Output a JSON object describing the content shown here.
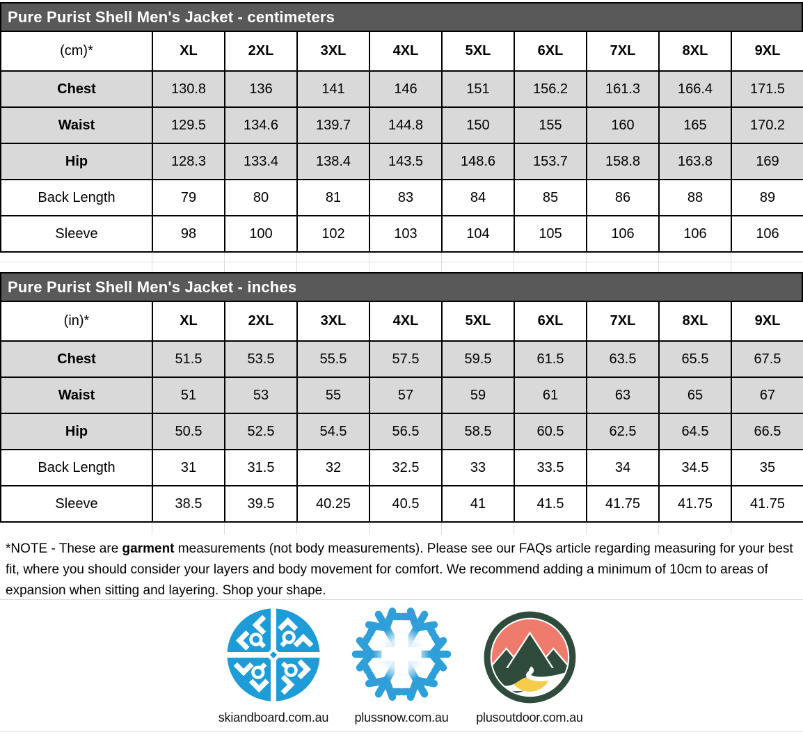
{
  "tables": [
    {
      "title": "Pure Purist Shell Men's Jacket - centimeters",
      "unit_header": "(cm)*",
      "columns": [
        "XL",
        "2XL",
        "3XL",
        "4XL",
        "5XL",
        "6XL",
        "7XL",
        "8XL",
        "9XL"
      ],
      "rows": [
        {
          "label": "Chest",
          "shaded": true,
          "values": [
            "130.8",
            "136",
            "141",
            "146",
            "151",
            "156.2",
            "161.3",
            "166.4",
            "171.5"
          ]
        },
        {
          "label": "Waist",
          "shaded": true,
          "values": [
            "129.5",
            "134.6",
            "139.7",
            "144.8",
            "150",
            "155",
            "160",
            "165",
            "170.2"
          ]
        },
        {
          "label": "Hip",
          "shaded": true,
          "values": [
            "128.3",
            "133.4",
            "138.4",
            "143.5",
            "148.6",
            "153.7",
            "158.8",
            "163.8",
            "169"
          ]
        },
        {
          "label": "Back Length",
          "shaded": false,
          "values": [
            "79",
            "80",
            "81",
            "83",
            "84",
            "85",
            "86",
            "88",
            "89"
          ]
        },
        {
          "label": "Sleeve",
          "shaded": false,
          "values": [
            "98",
            "100",
            "102",
            "103",
            "104",
            "105",
            "106",
            "106",
            "106"
          ]
        }
      ]
    },
    {
      "title": "Pure Purist Shell Men's Jacket - inches",
      "unit_header": "(in)*",
      "columns": [
        "XL",
        "2XL",
        "3XL",
        "4XL",
        "5XL",
        "6XL",
        "7XL",
        "8XL",
        "9XL"
      ],
      "rows": [
        {
          "label": "Chest",
          "shaded": true,
          "values": [
            "51.5",
            "53.5",
            "55.5",
            "57.5",
            "59.5",
            "61.5",
            "63.5",
            "65.5",
            "67.5"
          ]
        },
        {
          "label": "Waist",
          "shaded": true,
          "values": [
            "51",
            "53",
            "55",
            "57",
            "59",
            "61",
            "63",
            "65",
            "67"
          ]
        },
        {
          "label": "Hip",
          "shaded": true,
          "values": [
            "50.5",
            "52.5",
            "54.5",
            "56.5",
            "58.5",
            "60.5",
            "62.5",
            "64.5",
            "66.5"
          ]
        },
        {
          "label": "Back Length",
          "shaded": false,
          "values": [
            "31",
            "31.5",
            "32",
            "32.5",
            "33",
            "33.5",
            "34",
            "34.5",
            "35"
          ]
        },
        {
          "label": "Sleeve",
          "shaded": false,
          "values": [
            "38.5",
            "39.5",
            "40.25",
            "40.5",
            "41",
            "41.5",
            "41.75",
            "41.75",
            "41.75"
          ]
        }
      ]
    }
  ],
  "note": {
    "prefix": "*NOTE - These are ",
    "bold": "garment",
    "suffix": " measurements (not body measurements). Please see our FAQs article regarding measuring for your best fit, where you should consider your layers and body movement for comfort. We recommend adding a minimum of 10cm to areas of expansion when sitting and layering. Shop your shape."
  },
  "logos": [
    {
      "label": "skiandboard.com.au",
      "icon": "snowflake-circle-icon"
    },
    {
      "label": "plussnow.com.au",
      "icon": "snowflake-plus-icon"
    },
    {
      "label": "plusoutdoor.com.au",
      "icon": "mountain-sun-icon"
    }
  ],
  "colors": {
    "title_bar_bg": "#595959",
    "title_text": "#ffffff",
    "shaded_row_bg": "#d9d9d9",
    "table_border": "#000000",
    "gridline": "#dcdcdc",
    "skiandboard_blue": "#1E9CD7",
    "plussnow_blue": "#2E9FD8",
    "outdoor_green": "#2E4B3C",
    "outdoor_salmon": "#EE7B6B",
    "outdoor_yellow": "#F6CD4B"
  }
}
